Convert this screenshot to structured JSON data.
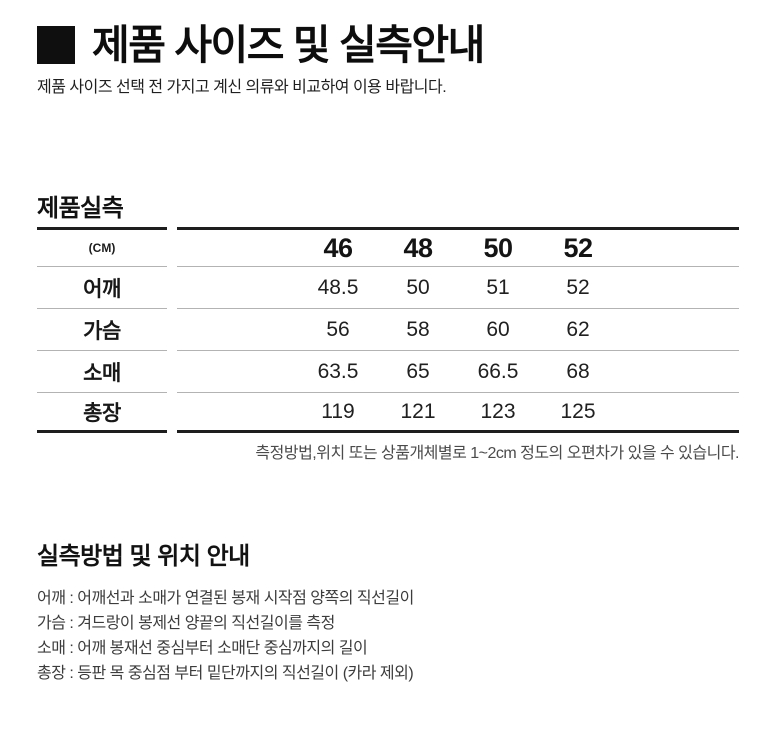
{
  "header": {
    "title": "제품 사이즈 및 실측안내",
    "subtitle": "제품 사이즈 선택 전 가지고 계신 의류와 비교하여 이용 바랍니다."
  },
  "size_section": {
    "heading": "제품실측",
    "note": "측정방법,위치 또는 상품개체별로 1~2cm 정도의 오편차가 있을 수 있습니다."
  },
  "size_table": {
    "unit_label": "(CM)",
    "columns": [
      "46",
      "48",
      "50",
      "52"
    ],
    "rows": [
      {
        "label": "어깨",
        "values": [
          "48.5",
          "50",
          "51",
          "52"
        ]
      },
      {
        "label": "가슴",
        "values": [
          "56",
          "58",
          "60",
          "62"
        ]
      },
      {
        "label": "소매",
        "values": [
          "63.5",
          "65",
          "66.5",
          "68"
        ]
      },
      {
        "label": "총장",
        "values": [
          "119",
          "121",
          "123",
          "125"
        ]
      }
    ]
  },
  "method_section": {
    "heading": "실측방법 및 위치 안내",
    "lines": [
      "어깨 : 어깨선과 소매가 연결된 봉재 시작점 양쪽의 직선길이",
      "가슴 : 겨드랑이 봉제선 양끝의 직선길이를 측정",
      "소매 : 어깨 봉재선 중심부터 소매단 중심까지의 길이",
      "총장 : 등판 목 중심점 부터 밑단까지의 직선길이 (카라 제외)"
    ]
  },
  "colors": {
    "line_dark": "#1e1e1e",
    "line_light": "#b3b3b3",
    "text_primary": "#111111",
    "text_secondary": "#4b4b4b"
  }
}
